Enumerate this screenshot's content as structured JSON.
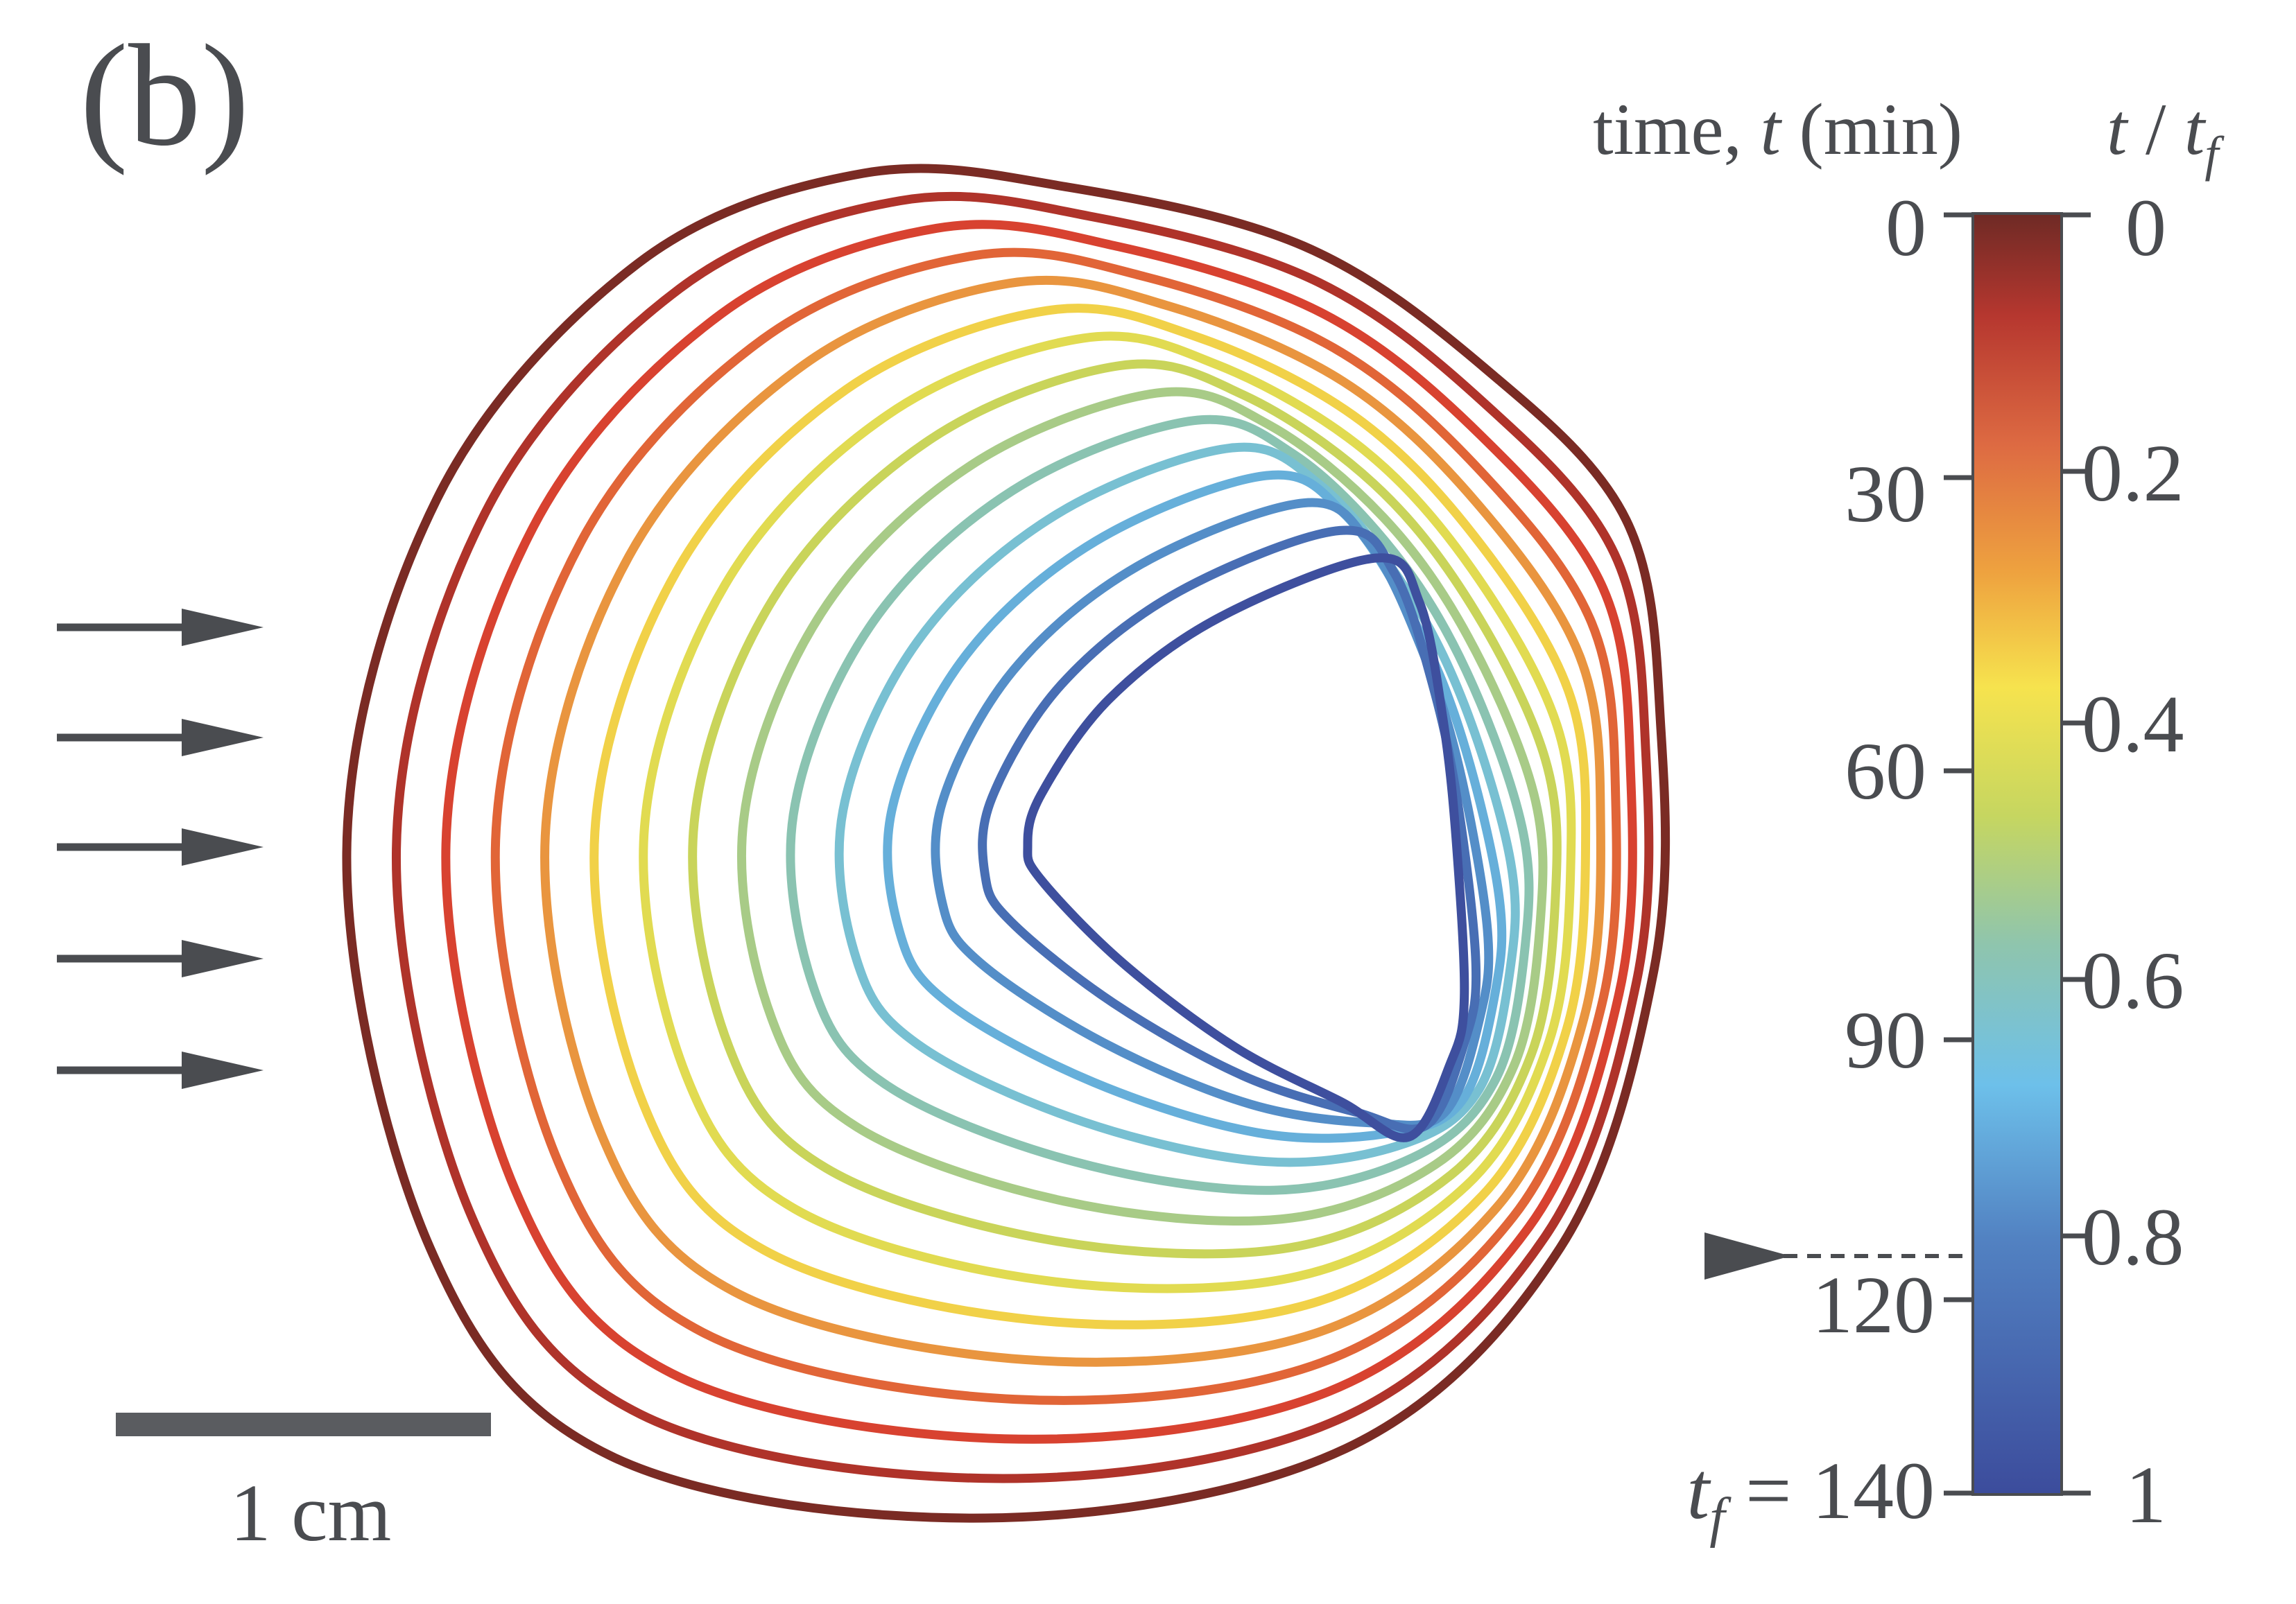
{
  "panel_label": "(b)",
  "scale_bar": {
    "label": "1 cm"
  },
  "colorbar": {
    "left_title": {
      "text": "time, ",
      "var": "t",
      "unit": " (min)"
    },
    "right_title": {
      "var_t": "t",
      "slash": " / ",
      "var_tf": "t",
      "sub": "f"
    },
    "left_ticks": [
      "0",
      "30",
      "60",
      "90",
      "120"
    ],
    "final_label": {
      "var": "t",
      "sub": "f",
      "text": " = 140"
    },
    "right_ticks": [
      "0",
      "0.2",
      "0.4",
      "0.6",
      "0.8",
      "1"
    ]
  },
  "colors": {
    "stops": [
      "#7a2b24",
      "#d6392e",
      "#e5773b",
      "#f3e04a",
      "#c9d45a",
      "#8fc4a9",
      "#6fbfe3",
      "#4f86c4",
      "#3e4f9e"
    ],
    "ink": "#4a4c50"
  }
}
